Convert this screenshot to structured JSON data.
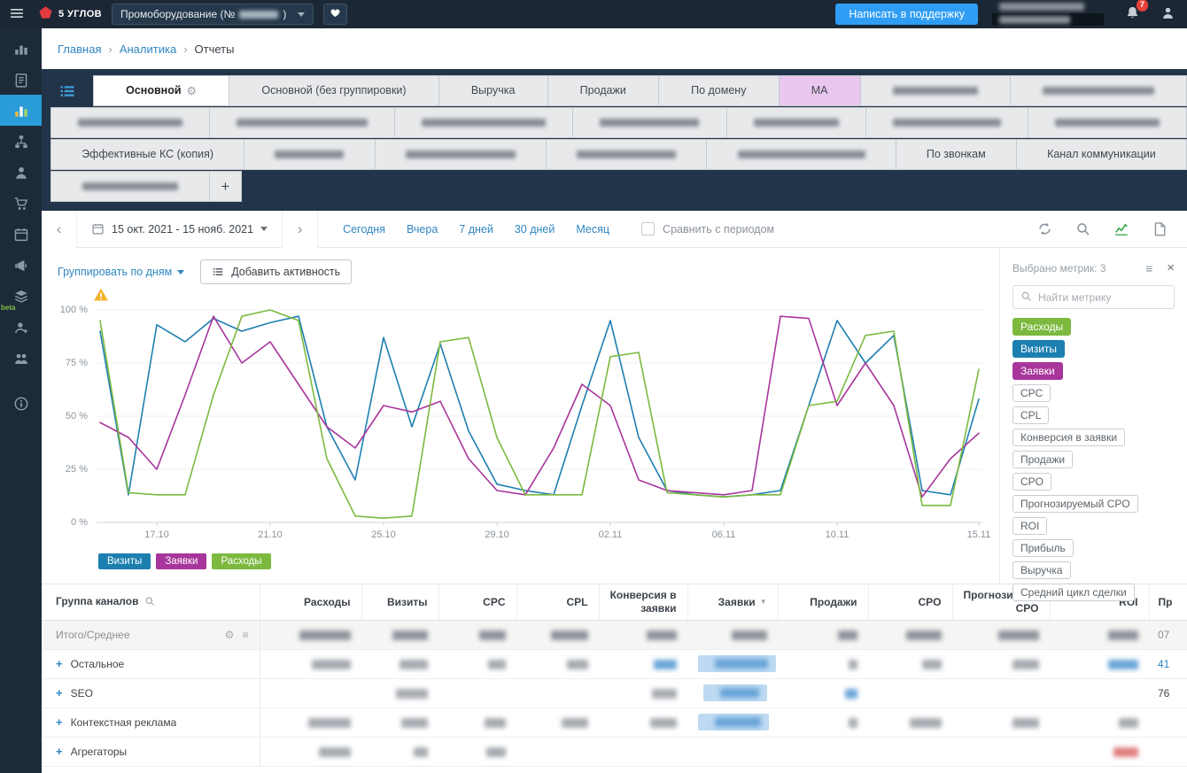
{
  "topbar": {
    "logo_text": "5 УГЛОВ",
    "project_prefix": "Промоборудование (№",
    "project_suffix": ")",
    "support_button": "Написать в поддержку",
    "notifications_badge": "7"
  },
  "sidebar": {
    "items": [
      {
        "name": "dashboard",
        "icon": "dashboard"
      },
      {
        "name": "reports",
        "icon": "reports"
      },
      {
        "name": "analytics",
        "icon": "analytics",
        "active": true
      },
      {
        "name": "funnels",
        "icon": "sitemap"
      },
      {
        "name": "customers",
        "icon": "user"
      },
      {
        "name": "orders",
        "icon": "cart"
      },
      {
        "name": "catalog",
        "icon": "calendar"
      },
      {
        "name": "promo",
        "icon": "megaphone"
      },
      {
        "name": "integrations",
        "icon": "cube",
        "badge": "beta"
      },
      {
        "name": "partners",
        "icon": "user-star"
      },
      {
        "name": "team",
        "icon": "team"
      },
      {
        "name": "help",
        "icon": "info",
        "gap": true
      }
    ]
  },
  "breadcrumb": {
    "items": [
      {
        "label": "Главная",
        "link": true
      },
      {
        "label": "Аналитика",
        "link": true
      },
      {
        "label": "Отчеты",
        "link": false
      }
    ]
  },
  "tabs": {
    "rows": [
      [
        {
          "label": "Основной",
          "active": true,
          "gear": true
        },
        {
          "label": "Основной (без группировки)"
        },
        {
          "label": "Выручка"
        },
        {
          "label": "Продажи"
        },
        {
          "label": "По домену"
        },
        {
          "label": "МА",
          "highlight": true
        },
        {
          "redacted": true,
          "w": 96
        },
        {
          "redacted": true,
          "w": 126
        }
      ],
      [
        {
          "redacted": true,
          "w": 118
        },
        {
          "redacted": true,
          "w": 148
        },
        {
          "redacted": true,
          "w": 140
        },
        {
          "redacted": true,
          "w": 112
        },
        {
          "redacted": true,
          "w": 96
        },
        {
          "redacted": true,
          "w": 122
        },
        {
          "redacted": true,
          "w": 118
        }
      ],
      [
        {
          "label": "Эффективные КС (копия)"
        },
        {
          "redacted": true,
          "w": 78
        },
        {
          "redacted": true,
          "w": 124
        },
        {
          "redacted": true,
          "w": 112
        },
        {
          "redacted": true,
          "w": 144
        },
        {
          "label": "По звонкам"
        },
        {
          "label": "Канал коммуникации"
        }
      ],
      [
        {
          "redacted": true,
          "w": 108
        },
        {
          "label": "+",
          "add": true
        }
      ]
    ]
  },
  "toolbar": {
    "date_range": "15 окт. 2021 - 15 нояб. 2021",
    "quick_links": [
      "Сегодня",
      "Вчера",
      "7 дней",
      "30 дней",
      "Месяц"
    ],
    "compare_label": "Сравнить с периодом"
  },
  "chart_controls": {
    "group_by": "Группировать по дням",
    "add_activity": "Добавить активность"
  },
  "metrics_panel": {
    "selected_label": "Выбрано метрик: 3",
    "search_placeholder": "Найти метрику",
    "chips": [
      {
        "label": "Расходы",
        "color": "#7cb93e"
      },
      {
        "label": "Визиты",
        "color": "#1d7fb0"
      },
      {
        "label": "Заявки",
        "color": "#a8359b"
      },
      {
        "label": "CPC"
      },
      {
        "label": "CPL"
      },
      {
        "label": "Конверсия в заявки"
      },
      {
        "label": "Продажи"
      },
      {
        "label": "CPO"
      },
      {
        "label": "Прогнозируемый CPO"
      },
      {
        "label": "ROI"
      },
      {
        "label": "Прибыль"
      },
      {
        "label": "Выручка"
      },
      {
        "label": "Средний цикл сделки"
      }
    ]
  },
  "chart_data": {
    "type": "line",
    "title": "",
    "xlabel": "",
    "ylabel": "%",
    "ylim": [
      0,
      100
    ],
    "grid": true,
    "legend_position": "bottom-left",
    "y_ticks": [
      {
        "label": "100 %",
        "value": 100
      },
      {
        "label": "75 %",
        "value": 75
      },
      {
        "label": "50 %",
        "value": 50
      },
      {
        "label": "25 %",
        "value": 25
      },
      {
        "label": "0 %",
        "value": 0
      }
    ],
    "x_ticks": [
      {
        "label": "17.10",
        "index": 2
      },
      {
        "label": "21.10",
        "index": 6
      },
      {
        "label": "25.10",
        "index": 10
      },
      {
        "label": "29.10",
        "index": 14
      },
      {
        "label": "02.11",
        "index": 18
      },
      {
        "label": "06.11",
        "index": 22
      },
      {
        "label": "10.11",
        "index": 26
      },
      {
        "label": "15.11",
        "index": 31
      }
    ],
    "x_range": [
      "15.10.2021",
      "15.11.2021"
    ],
    "series": [
      {
        "name": "Визиты",
        "color": "#1d7fb0",
        "values": [
          90,
          13,
          93,
          85,
          96,
          90,
          94,
          97,
          45,
          20,
          87,
          45,
          84,
          43,
          18,
          15,
          13,
          55,
          95,
          40,
          15,
          13,
          12,
          13,
          15,
          55,
          95,
          75,
          88,
          15,
          13,
          58
        ]
      },
      {
        "name": "Заявки",
        "color": "#a8359b",
        "values": [
          47,
          40,
          25,
          60,
          97,
          75,
          85,
          65,
          45,
          35,
          55,
          52,
          57,
          30,
          15,
          13,
          35,
          65,
          55,
          20,
          15,
          14,
          13,
          15,
          97,
          96,
          55,
          75,
          55,
          12,
          30,
          42
        ]
      },
      {
        "name": "Расходы",
        "color": "#7cb93e",
        "values": [
          95,
          14,
          13,
          13,
          60,
          97,
          100,
          95,
          30,
          3,
          2,
          3,
          85,
          87,
          40,
          13,
          13,
          13,
          78,
          80,
          14,
          13,
          12,
          13,
          13,
          55,
          57,
          88,
          90,
          8,
          8,
          72
        ]
      }
    ]
  },
  "table": {
    "columns": [
      {
        "label": "Группа каналов",
        "search_icon": true
      },
      {
        "label": "Расходы"
      },
      {
        "label": "Визиты"
      },
      {
        "label": "CPC"
      },
      {
        "label": "CPL"
      },
      {
        "label": "Конверсия в\nзаявки"
      },
      {
        "label": "Заявки",
        "sorted": "desc"
      },
      {
        "label": "Продажи"
      },
      {
        "label": "CPO"
      },
      {
        "label": "Прогнозируем…\nСРО"
      },
      {
        "label": "ROI"
      },
      {
        "label": "Пр"
      }
    ],
    "rows": [
      {
        "label": "Итого/Среднее",
        "total": true,
        "cells": [
          {
            "b": "g",
            "w": 58
          },
          {
            "b": "g",
            "w": 40
          },
          {
            "b": "g",
            "w": 30
          },
          {
            "b": "g",
            "w": 42
          },
          {
            "b": "g",
            "w": 34
          },
          {
            "b": "g",
            "w": 40
          },
          {
            "b": "g",
            "w": 22
          },
          {
            "b": "g",
            "w": 40
          },
          {
            "b": "g",
            "w": 46
          },
          {
            "b": "g",
            "w": 34
          },
          {
            "t": "07"
          }
        ]
      },
      {
        "label": "Остальное",
        "expandable": true,
        "cells": [
          {
            "b": "g",
            "w": 44
          },
          {
            "b": "g",
            "w": 32
          },
          {
            "b": "g",
            "w": 20
          },
          {
            "b": "g",
            "w": 24
          },
          {
            "b": "bl",
            "w": 26
          },
          {
            "b": "sel",
            "w": 60
          },
          {
            "b": "g",
            "w": 10
          },
          {
            "b": "g",
            "w": 22
          },
          {
            "b": "g",
            "w": 30
          },
          {
            "b": "bl",
            "w": 34
          },
          {
            "t": "41",
            "link": true
          }
        ]
      },
      {
        "label": "SEO",
        "expandable": true,
        "cells": [
          null,
          {
            "b": "g",
            "w": 36
          },
          null,
          null,
          {
            "b": "g",
            "w": 28
          },
          {
            "b": "sel",
            "w": 44
          },
          {
            "b": "bl",
            "w": 14
          },
          null,
          null,
          null,
          {
            "t": "76"
          }
        ]
      },
      {
        "label": "Контекстная реклама",
        "expandable": true,
        "cells": [
          {
            "b": "g",
            "w": 48
          },
          {
            "b": "g",
            "w": 30
          },
          {
            "b": "g",
            "w": 24
          },
          {
            "b": "g",
            "w": 30
          },
          {
            "b": "g",
            "w": 30
          },
          {
            "b": "sel",
            "w": 52
          },
          {
            "b": "g",
            "w": 10
          },
          {
            "b": "g",
            "w": 36
          },
          {
            "b": "g",
            "w": 30
          },
          {
            "b": "g",
            "w": 22
          },
          null
        ]
      },
      {
        "label": "Агрегаторы",
        "expandable": true,
        "cells": [
          {
            "b": "g",
            "w": 36
          },
          {
            "b": "g",
            "w": 16
          },
          {
            "b": "g",
            "w": 22
          },
          null,
          null,
          null,
          null,
          null,
          null,
          {
            "b": "r",
            "w": 28
          },
          null
        ]
      }
    ]
  },
  "colors": {
    "accent_blue": "#2e86c1",
    "visits": "#1d7fb0",
    "leads": "#a8359b",
    "costs": "#7cb93e",
    "support_button": "#2f9df4",
    "notification_badge": "#e8403a"
  }
}
